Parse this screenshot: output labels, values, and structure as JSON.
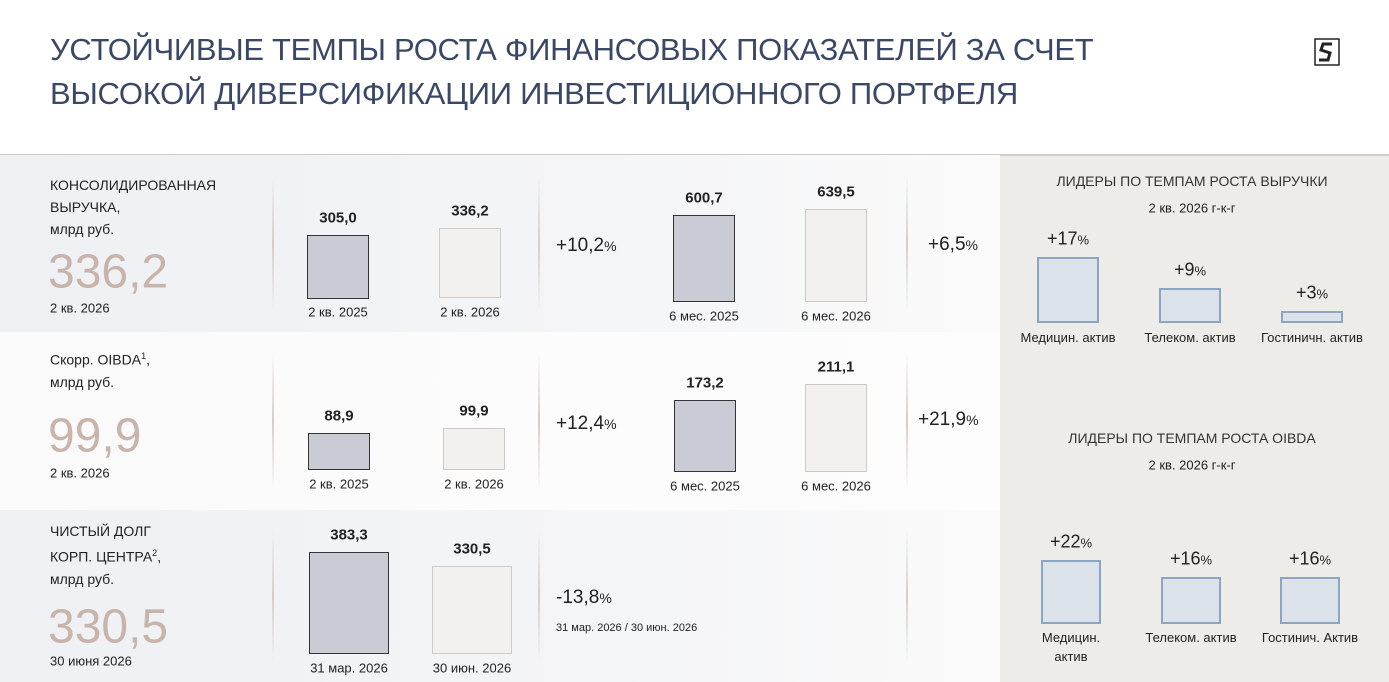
{
  "header": {
    "title_lines": [
      "УСТОЙЧИВЫЕ ТЕМПЫ РОСТА ФИНАНСОВЫХ ПОКАЗАТЕЛЕЙ ЗА СЧЕТ",
      "ВЫСОКОЙ ДИВЕРСИФИКАЦИИ ИНВЕСТИЦИОННОГО ПОРТФЕЛЯ"
    ]
  },
  "metrics": [
    {
      "name_lines": [
        {
          "text": "КОНСОЛИДИРОВАННАЯ"
        },
        {
          "text": "ВЫРУЧКА,"
        },
        {
          "text": "млрд руб."
        }
      ],
      "headline": "336,2",
      "headline_period": "2 кв. 2026",
      "groups": [
        {
          "bars": [
            {
              "value": 305.0,
              "value_label": "305,0",
              "label": "2 кв. 2025"
            },
            {
              "value": 336.2,
              "value_label": "336,2",
              "label": "2 кв. 2026"
            }
          ],
          "change": {
            "value": 10.2,
            "value_label": "+10,2",
            "unit": "%"
          }
        },
        {
          "bars": [
            {
              "value": 600.7,
              "value_label": "600,7",
              "label": "6 мес. 2025"
            },
            {
              "value": 639.5,
              "value_label": "639,5",
              "label": "6 мес. 2026"
            }
          ],
          "change": {
            "value": 6.5,
            "value_label": "+6,5",
            "unit": "%"
          }
        }
      ]
    },
    {
      "name_lines": [
        {
          "text": "Скорр. OIBDA",
          "sup": "1",
          "after": ","
        },
        {
          "text": "млрд руб."
        }
      ],
      "headline": "99,9",
      "headline_period": "2 кв. 2026",
      "groups": [
        {
          "bars": [
            {
              "value": 88.9,
              "value_label": "88,9",
              "label": "2 кв. 2025"
            },
            {
              "value": 99.9,
              "value_label": "99,9",
              "label": "2 кв. 2026"
            }
          ],
          "change": {
            "value": 12.4,
            "value_label": "+12,4",
            "unit": "%"
          }
        },
        {
          "bars": [
            {
              "value": 173.2,
              "value_label": "173,2",
              "label": "6 мес. 2025"
            },
            {
              "value": 211.1,
              "value_label": "211,1",
              "label": "6 мес. 2026"
            }
          ],
          "change": {
            "value": 21.9,
            "value_label": "+21,9",
            "unit": "%"
          }
        }
      ]
    },
    {
      "name_lines": [
        {
          "text": "ЧИСТЫЙ ДОЛГ"
        },
        {
          "text": "КОРП. ЦЕНТРА",
          "sup": "2",
          "after": ","
        },
        {
          "text": "млрд руб."
        }
      ],
      "headline": "330,5",
      "headline_period": "30 июня 2026",
      "groups": [
        {
          "bars": [
            {
              "value": 383.3,
              "value_label": "383,3",
              "label": "31 мар. 2026"
            },
            {
              "value": 330.5,
              "value_label": "330,5",
              "label": "30 июн. 2026"
            }
          ],
          "change": {
            "value": -13.8,
            "value_label": "-13,8",
            "unit": "%",
            "note": "31 мар. 2026 /  30 июн. 2026"
          }
        }
      ]
    }
  ],
  "leaders": [
    {
      "title": "ЛИДЕРЫ ПО ТЕМПАМ РОСТА ВЫРУЧКИ",
      "subtitle": "2 кв. 2026 г-к-г",
      "items": [
        {
          "category_lines": [
            "Медицин. актив"
          ],
          "value": 17,
          "value_label": "+17",
          "unit": "%"
        },
        {
          "category_lines": [
            "Телеком. актив"
          ],
          "value": 9,
          "value_label": "+9",
          "unit": "%"
        },
        {
          "category_lines": [
            "Гостиничн. актив"
          ],
          "value": 3,
          "value_label": "+3",
          "unit": "%"
        }
      ]
    },
    {
      "title": "ЛИДЕРЫ ПО ТЕМПАМ РОСТА OIBDA",
      "subtitle": "2 кв. 2026 г-к-г",
      "items": [
        {
          "category_lines": [
            "Медицин.",
            "актив"
          ],
          "value": 22,
          "value_label": "+22",
          "unit": "%"
        },
        {
          "category_lines": [
            "Телеком. актив"
          ],
          "value": 16,
          "value_label": "+16",
          "unit": "%"
        },
        {
          "category_lines": [
            "Гостинич. Актив"
          ],
          "value": 16,
          "value_label": "+16",
          "unit": "%"
        }
      ]
    }
  ]
}
